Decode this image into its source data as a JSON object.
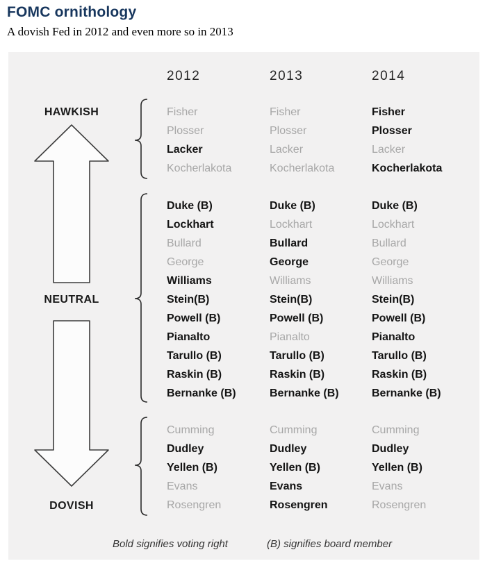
{
  "header": {
    "title": "FOMC ornithology",
    "subtitle": "A dovish Fed in 2012 and even more so in 2013"
  },
  "chart_data": {
    "type": "table",
    "title": "FOMC ornithology",
    "subtitle": "A dovish Fed in 2012 and even more so in 2013",
    "years": [
      "2012",
      "2013",
      "2014"
    ],
    "axis_labels": [
      "HAWKISH",
      "NEUTRAL",
      "DOVISH"
    ],
    "legend_meaning": {
      "bold": "voting right",
      "gray": "non-voting",
      "B": "board member"
    },
    "groups": [
      {
        "label": "HAWKISH",
        "members": [
          {
            "name": "Fisher",
            "bold": [
              false,
              false,
              true
            ]
          },
          {
            "name": "Plosser",
            "bold": [
              false,
              false,
              true
            ]
          },
          {
            "name": "Lacker",
            "bold": [
              true,
              false,
              false
            ]
          },
          {
            "name": "Kocherlakota",
            "bold": [
              false,
              false,
              true
            ]
          }
        ]
      },
      {
        "label": "NEUTRAL",
        "members": [
          {
            "name": "Duke (B)",
            "bold": [
              true,
              true,
              true
            ]
          },
          {
            "name": "Lockhart",
            "bold": [
              true,
              false,
              false
            ]
          },
          {
            "name": "Bullard",
            "bold": [
              false,
              true,
              false
            ]
          },
          {
            "name": "George",
            "bold": [
              false,
              true,
              false
            ]
          },
          {
            "name": "Williams",
            "bold": [
              true,
              false,
              false
            ]
          },
          {
            "name": "Stein(B)",
            "bold": [
              true,
              true,
              true
            ]
          },
          {
            "name": "Powell (B)",
            "bold": [
              true,
              true,
              true
            ]
          },
          {
            "name": "Pianalto",
            "bold": [
              true,
              false,
              true
            ]
          },
          {
            "name": "Tarullo (B)",
            "bold": [
              true,
              true,
              true
            ]
          },
          {
            "name": "Raskin (B)",
            "bold": [
              true,
              true,
              true
            ]
          },
          {
            "name": "Bernanke (B)",
            "bold": [
              true,
              true,
              true
            ]
          }
        ]
      },
      {
        "label": "DOVISH",
        "members": [
          {
            "name": "Cumming",
            "bold": [
              false,
              false,
              false
            ]
          },
          {
            "name": "Dudley",
            "bold": [
              true,
              true,
              true
            ]
          },
          {
            "name": "Yellen (B)",
            "bold": [
              true,
              true,
              true
            ]
          },
          {
            "name": "Evans",
            "bold": [
              false,
              true,
              false
            ]
          },
          {
            "name": "Rosengren",
            "bold": [
              false,
              true,
              false
            ]
          }
        ]
      }
    ],
    "notes": [
      "Bold signifies voting right",
      "(B) signifies board member"
    ]
  },
  "colors": {
    "title": "#17365d",
    "voting_text": "#141414",
    "nonvoting_text": "#a7a7a7",
    "panel_background": "#f2f1f1",
    "arrow_outline": "#3d3d3d"
  }
}
